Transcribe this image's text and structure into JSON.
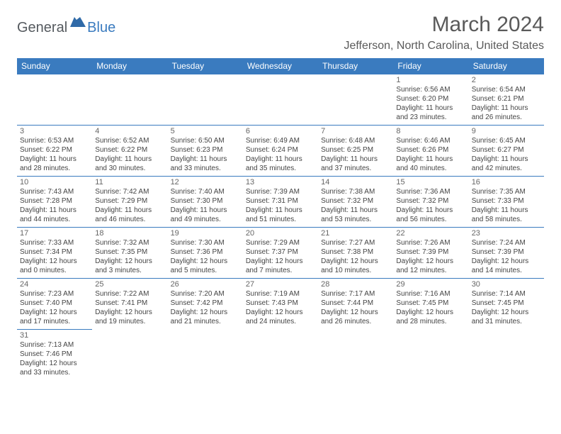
{
  "logo": {
    "general": "General",
    "blue": "Blue"
  },
  "title": "March 2024",
  "location": "Jefferson, North Carolina, United States",
  "colors": {
    "header_bg": "#3a7bbf",
    "header_fg": "#ffffff",
    "rule": "#3a7bbf"
  },
  "day_headers": [
    "Sunday",
    "Monday",
    "Tuesday",
    "Wednesday",
    "Thursday",
    "Friday",
    "Saturday"
  ],
  "weeks": [
    [
      null,
      null,
      null,
      null,
      null,
      {
        "n": "1",
        "sr": "Sunrise: 6:56 AM",
        "ss": "Sunset: 6:20 PM",
        "dl1": "Daylight: 11 hours",
        "dl2": "and 23 minutes."
      },
      {
        "n": "2",
        "sr": "Sunrise: 6:54 AM",
        "ss": "Sunset: 6:21 PM",
        "dl1": "Daylight: 11 hours",
        "dl2": "and 26 minutes."
      }
    ],
    [
      {
        "n": "3",
        "sr": "Sunrise: 6:53 AM",
        "ss": "Sunset: 6:22 PM",
        "dl1": "Daylight: 11 hours",
        "dl2": "and 28 minutes."
      },
      {
        "n": "4",
        "sr": "Sunrise: 6:52 AM",
        "ss": "Sunset: 6:22 PM",
        "dl1": "Daylight: 11 hours",
        "dl2": "and 30 minutes."
      },
      {
        "n": "5",
        "sr": "Sunrise: 6:50 AM",
        "ss": "Sunset: 6:23 PM",
        "dl1": "Daylight: 11 hours",
        "dl2": "and 33 minutes."
      },
      {
        "n": "6",
        "sr": "Sunrise: 6:49 AM",
        "ss": "Sunset: 6:24 PM",
        "dl1": "Daylight: 11 hours",
        "dl2": "and 35 minutes."
      },
      {
        "n": "7",
        "sr": "Sunrise: 6:48 AM",
        "ss": "Sunset: 6:25 PM",
        "dl1": "Daylight: 11 hours",
        "dl2": "and 37 minutes."
      },
      {
        "n": "8",
        "sr": "Sunrise: 6:46 AM",
        "ss": "Sunset: 6:26 PM",
        "dl1": "Daylight: 11 hours",
        "dl2": "and 40 minutes."
      },
      {
        "n": "9",
        "sr": "Sunrise: 6:45 AM",
        "ss": "Sunset: 6:27 PM",
        "dl1": "Daylight: 11 hours",
        "dl2": "and 42 minutes."
      }
    ],
    [
      {
        "n": "10",
        "sr": "Sunrise: 7:43 AM",
        "ss": "Sunset: 7:28 PM",
        "dl1": "Daylight: 11 hours",
        "dl2": "and 44 minutes."
      },
      {
        "n": "11",
        "sr": "Sunrise: 7:42 AM",
        "ss": "Sunset: 7:29 PM",
        "dl1": "Daylight: 11 hours",
        "dl2": "and 46 minutes."
      },
      {
        "n": "12",
        "sr": "Sunrise: 7:40 AM",
        "ss": "Sunset: 7:30 PM",
        "dl1": "Daylight: 11 hours",
        "dl2": "and 49 minutes."
      },
      {
        "n": "13",
        "sr": "Sunrise: 7:39 AM",
        "ss": "Sunset: 7:31 PM",
        "dl1": "Daylight: 11 hours",
        "dl2": "and 51 minutes."
      },
      {
        "n": "14",
        "sr": "Sunrise: 7:38 AM",
        "ss": "Sunset: 7:32 PM",
        "dl1": "Daylight: 11 hours",
        "dl2": "and 53 minutes."
      },
      {
        "n": "15",
        "sr": "Sunrise: 7:36 AM",
        "ss": "Sunset: 7:32 PM",
        "dl1": "Daylight: 11 hours",
        "dl2": "and 56 minutes."
      },
      {
        "n": "16",
        "sr": "Sunrise: 7:35 AM",
        "ss": "Sunset: 7:33 PM",
        "dl1": "Daylight: 11 hours",
        "dl2": "and 58 minutes."
      }
    ],
    [
      {
        "n": "17",
        "sr": "Sunrise: 7:33 AM",
        "ss": "Sunset: 7:34 PM",
        "dl1": "Daylight: 12 hours",
        "dl2": "and 0 minutes."
      },
      {
        "n": "18",
        "sr": "Sunrise: 7:32 AM",
        "ss": "Sunset: 7:35 PM",
        "dl1": "Daylight: 12 hours",
        "dl2": "and 3 minutes."
      },
      {
        "n": "19",
        "sr": "Sunrise: 7:30 AM",
        "ss": "Sunset: 7:36 PM",
        "dl1": "Daylight: 12 hours",
        "dl2": "and 5 minutes."
      },
      {
        "n": "20",
        "sr": "Sunrise: 7:29 AM",
        "ss": "Sunset: 7:37 PM",
        "dl1": "Daylight: 12 hours",
        "dl2": "and 7 minutes."
      },
      {
        "n": "21",
        "sr": "Sunrise: 7:27 AM",
        "ss": "Sunset: 7:38 PM",
        "dl1": "Daylight: 12 hours",
        "dl2": "and 10 minutes."
      },
      {
        "n": "22",
        "sr": "Sunrise: 7:26 AM",
        "ss": "Sunset: 7:39 PM",
        "dl1": "Daylight: 12 hours",
        "dl2": "and 12 minutes."
      },
      {
        "n": "23",
        "sr": "Sunrise: 7:24 AM",
        "ss": "Sunset: 7:39 PM",
        "dl1": "Daylight: 12 hours",
        "dl2": "and 14 minutes."
      }
    ],
    [
      {
        "n": "24",
        "sr": "Sunrise: 7:23 AM",
        "ss": "Sunset: 7:40 PM",
        "dl1": "Daylight: 12 hours",
        "dl2": "and 17 minutes."
      },
      {
        "n": "25",
        "sr": "Sunrise: 7:22 AM",
        "ss": "Sunset: 7:41 PM",
        "dl1": "Daylight: 12 hours",
        "dl2": "and 19 minutes."
      },
      {
        "n": "26",
        "sr": "Sunrise: 7:20 AM",
        "ss": "Sunset: 7:42 PM",
        "dl1": "Daylight: 12 hours",
        "dl2": "and 21 minutes."
      },
      {
        "n": "27",
        "sr": "Sunrise: 7:19 AM",
        "ss": "Sunset: 7:43 PM",
        "dl1": "Daylight: 12 hours",
        "dl2": "and 24 minutes."
      },
      {
        "n": "28",
        "sr": "Sunrise: 7:17 AM",
        "ss": "Sunset: 7:44 PM",
        "dl1": "Daylight: 12 hours",
        "dl2": "and 26 minutes."
      },
      {
        "n": "29",
        "sr": "Sunrise: 7:16 AM",
        "ss": "Sunset: 7:45 PM",
        "dl1": "Daylight: 12 hours",
        "dl2": "and 28 minutes."
      },
      {
        "n": "30",
        "sr": "Sunrise: 7:14 AM",
        "ss": "Sunset: 7:45 PM",
        "dl1": "Daylight: 12 hours",
        "dl2": "and 31 minutes."
      }
    ],
    [
      {
        "n": "31",
        "sr": "Sunrise: 7:13 AM",
        "ss": "Sunset: 7:46 PM",
        "dl1": "Daylight: 12 hours",
        "dl2": "and 33 minutes."
      },
      null,
      null,
      null,
      null,
      null,
      null
    ]
  ]
}
